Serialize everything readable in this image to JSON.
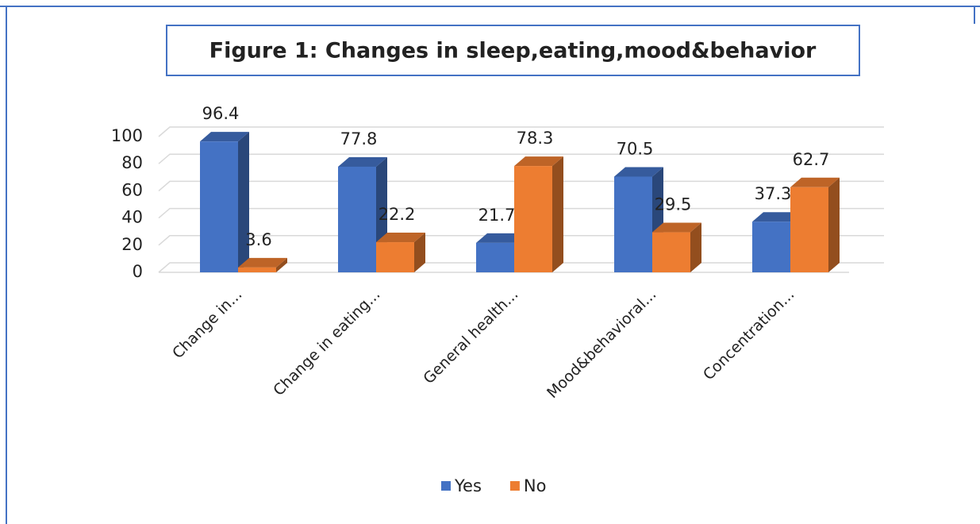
{
  "chart_data": {
    "type": "bar3d",
    "title": "Figure 1: Changes in sleep,eating,mood&behavior",
    "categories": [
      "Change in...",
      "Change in eating...",
      "General health...",
      "Mood&behavioral...",
      "Concentration..."
    ],
    "series": [
      {
        "name": "Yes",
        "color": "#4472c4",
        "values": [
          96.4,
          77.8,
          21.7,
          70.5,
          37.3
        ]
      },
      {
        "name": "No",
        "color": "#ed7d31",
        "values": [
          3.6,
          22.2,
          78.3,
          29.5,
          62.7
        ]
      }
    ],
    "ylim": [
      0,
      100
    ],
    "yticks": [
      0,
      20,
      40,
      60,
      80,
      100
    ],
    "grid": true,
    "legend": "bottom"
  }
}
